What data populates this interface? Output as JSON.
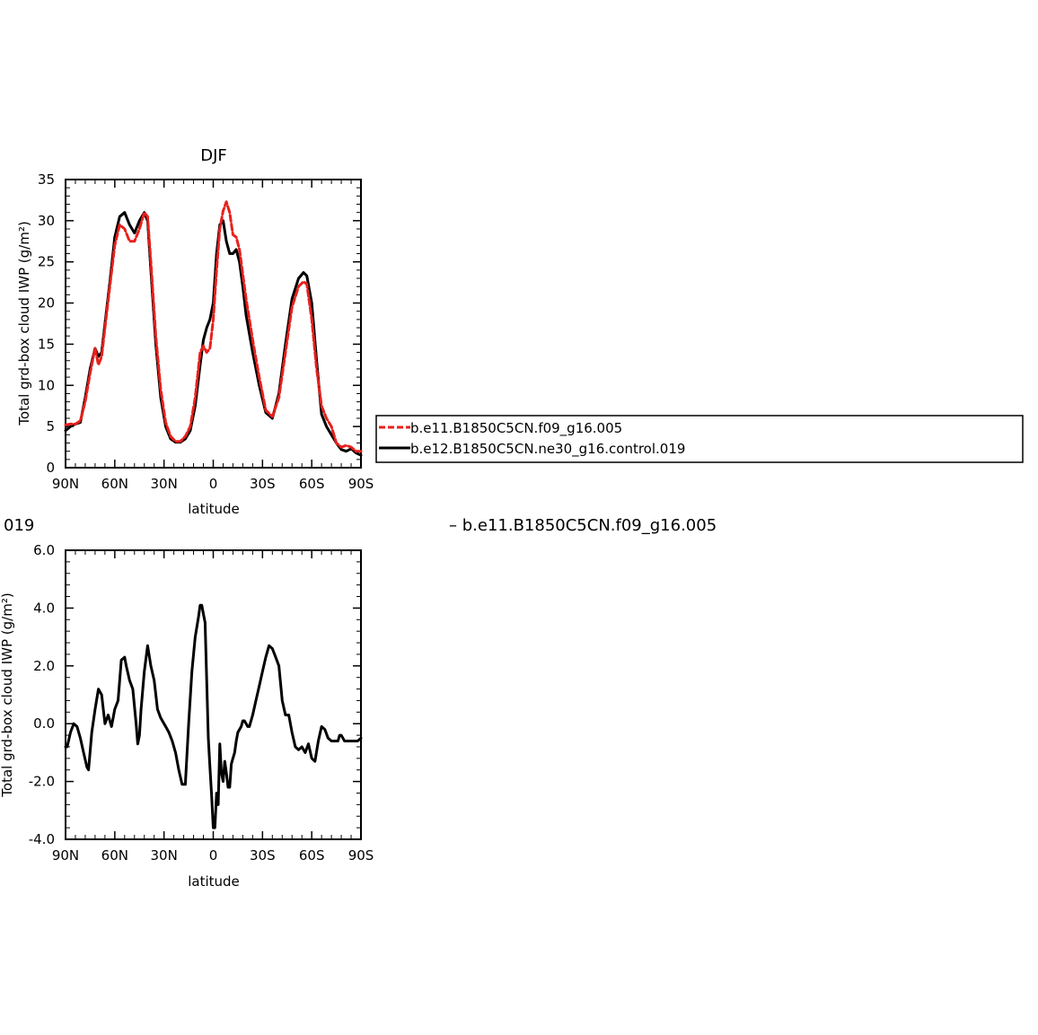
{
  "chart_data": [
    {
      "type": "line",
      "title": "DJF",
      "xlabel": "latitude",
      "ylabel": "Total grd-box cloud IWP (g/m²)",
      "xlim": [
        -90,
        90
      ],
      "ylim": [
        0,
        35
      ],
      "x_ticks": [
        "90N",
        "60N",
        "30N",
        "0",
        "30S",
        "60S",
        "90S"
      ],
      "y_ticks": [
        "0",
        "5",
        "10",
        "15",
        "20",
        "25",
        "30",
        "35"
      ],
      "legend_position": "right",
      "series": [
        {
          "name": "b.e11.B1850C5CN.f09_g16.005",
          "color": "#e8201c",
          "dash": "dashed",
          "x": [
            -90,
            -87,
            -84,
            -81,
            -78,
            -75,
            -72,
            -70,
            -68,
            -66,
            -63,
            -60,
            -57,
            -54,
            -51,
            -48,
            -45,
            -42,
            -40,
            -38,
            -35,
            -32,
            -29,
            -26,
            -23,
            -20,
            -17,
            -14,
            -11,
            -8,
            -6,
            -4,
            -2,
            0,
            2,
            4,
            6,
            8,
            10,
            12,
            14,
            16,
            18,
            20,
            24,
            28,
            32,
            36,
            40,
            44,
            48,
            52,
            55,
            57,
            60,
            63,
            66,
            69,
            72,
            75,
            78,
            81,
            84,
            87,
            90
          ],
          "y": [
            5.2,
            5.3,
            5.3,
            5.7,
            8.0,
            11.5,
            14.5,
            12.5,
            13.5,
            17.0,
            22.0,
            27.0,
            29.5,
            29.0,
            27.5,
            27.5,
            29.0,
            31.0,
            30.5,
            25.0,
            16.0,
            9.5,
            5.5,
            3.8,
            3.2,
            3.2,
            3.8,
            5.0,
            8.5,
            14.0,
            14.8,
            14.0,
            14.5,
            18.0,
            24.0,
            29.0,
            31.2,
            32.3,
            31.0,
            28.3,
            28.0,
            26.5,
            23.5,
            20.5,
            15.5,
            11.0,
            7.0,
            6.2,
            8.5,
            14.0,
            19.5,
            22.0,
            22.6,
            22.3,
            18.0,
            12.0,
            7.5,
            6.0,
            5.0,
            3.0,
            2.5,
            2.7,
            2.5,
            2.0,
            2.0
          ]
        },
        {
          "name": "b.e12.B1850C5CN.ne30_g16.control.019",
          "color": "#000000",
          "dash": "solid",
          "x": [
            -90,
            -87,
            -84,
            -81,
            -78,
            -75,
            -72,
            -70,
            -68,
            -66,
            -63,
            -60,
            -57,
            -54,
            -51,
            -48,
            -45,
            -42,
            -40,
            -38,
            -35,
            -32,
            -29,
            -26,
            -23,
            -20,
            -17,
            -14,
            -11,
            -8,
            -6,
            -4,
            -2,
            0,
            2,
            4,
            6,
            8,
            10,
            12,
            14,
            16,
            18,
            20,
            24,
            28,
            32,
            36,
            40,
            44,
            48,
            52,
            55,
            57,
            60,
            63,
            66,
            69,
            72,
            75,
            78,
            81,
            84,
            87,
            90
          ],
          "y": [
            4.5,
            5.0,
            5.3,
            5.5,
            8.5,
            12.0,
            14.5,
            13.5,
            14.0,
            17.5,
            22.5,
            28.0,
            30.5,
            31.0,
            29.5,
            28.5,
            30.0,
            31.0,
            30.0,
            24.0,
            15.0,
            8.5,
            5.0,
            3.5,
            3.1,
            3.1,
            3.5,
            4.5,
            7.5,
            12.5,
            15.5,
            17.0,
            18.0,
            20.0,
            26.0,
            29.5,
            30.0,
            27.5,
            26.0,
            26.0,
            26.5,
            25.0,
            22.0,
            18.5,
            14.0,
            10.0,
            6.7,
            6.0,
            9.0,
            15.0,
            20.5,
            23.0,
            23.7,
            23.3,
            20.0,
            13.0,
            6.5,
            5.0,
            4.0,
            3.0,
            2.2,
            2.0,
            2.3,
            1.8,
            1.5
          ]
        }
      ]
    },
    {
      "type": "line",
      "title": "",
      "title_fragment_left": "019",
      "title_fragment_right": "– b.e11.B1850C5CN.f09_g16.005",
      "xlabel": "latitude",
      "ylabel": "Total grd-box cloud IWP (g/m²)",
      "xlim": [
        -90,
        90
      ],
      "ylim": [
        -4.0,
        6.0
      ],
      "x_ticks": [
        "90N",
        "60N",
        "30N",
        "0",
        "30S",
        "60S",
        "90S"
      ],
      "y_ticks": [
        "-4.0",
        "-2.0",
        "0.0",
        "2.0",
        "4.0",
        "6.0"
      ],
      "series": [
        {
          "color": "#000000",
          "dash": "solid",
          "x": [
            -90,
            -89,
            -87,
            -85,
            -83,
            -81,
            -79,
            -77,
            -76,
            -74,
            -72,
            -70,
            -68,
            -66,
            -64,
            -62,
            -61,
            -60,
            -58,
            -57,
            -56,
            -54,
            -53,
            -51,
            -49,
            -47,
            -46,
            -45,
            -44,
            -42,
            -40,
            -38,
            -36,
            -34,
            -32,
            -30,
            -29,
            -27,
            -25,
            -23,
            -21,
            -19,
            -17,
            -15,
            -13,
            -11,
            -9,
            -8,
            -7,
            -6,
            -5,
            -4,
            -3,
            -2,
            -1,
            0,
            1,
            2,
            3,
            4,
            5,
            6,
            7,
            8,
            9,
            10,
            11,
            12,
            13,
            14,
            15,
            16,
            17,
            18,
            19,
            20,
            21,
            22,
            24,
            26,
            28,
            30,
            32,
            34,
            36,
            38,
            40,
            42,
            44,
            46,
            48,
            50,
            52,
            54,
            56,
            58,
            60,
            62,
            64,
            66,
            68,
            70,
            72,
            74,
            76,
            77,
            78,
            80,
            82,
            84,
            86,
            88,
            90
          ],
          "y": [
            -0.8,
            -0.8,
            -0.3,
            0.0,
            -0.1,
            -0.5,
            -1.0,
            -1.5,
            -1.6,
            -0.3,
            0.5,
            1.2,
            1.0,
            0.0,
            0.3,
            -0.1,
            0.2,
            0.5,
            0.8,
            1.5,
            2.2,
            2.3,
            2.0,
            1.5,
            1.2,
            0.0,
            -0.7,
            -0.4,
            0.5,
            1.8,
            2.7,
            2.0,
            1.5,
            0.5,
            0.2,
            0.0,
            -0.1,
            -0.3,
            -0.6,
            -1.0,
            -1.6,
            -2.1,
            -2.1,
            0.0,
            1.8,
            3.0,
            3.7,
            4.1,
            4.1,
            3.8,
            3.5,
            1.5,
            -0.5,
            -1.5,
            -2.5,
            -3.6,
            -3.6,
            -2.4,
            -2.8,
            -0.7,
            -1.7,
            -2.0,
            -1.3,
            -1.7,
            -2.2,
            -2.2,
            -1.4,
            -1.2,
            -1.0,
            -0.6,
            -0.3,
            -0.2,
            -0.1,
            0.1,
            0.1,
            0.0,
            -0.1,
            -0.1,
            0.3,
            0.8,
            1.3,
            1.8,
            2.3,
            2.7,
            2.6,
            2.3,
            2.0,
            0.8,
            0.3,
            0.3,
            -0.3,
            -0.8,
            -0.9,
            -0.8,
            -1.0,
            -0.7,
            -1.2,
            -1.3,
            -0.6,
            -0.1,
            -0.2,
            -0.5,
            -0.6,
            -0.6,
            -0.6,
            -0.4,
            -0.4,
            -0.6,
            -0.6,
            -0.6,
            -0.6,
            -0.6,
            -0.5
          ]
        }
      ]
    }
  ]
}
